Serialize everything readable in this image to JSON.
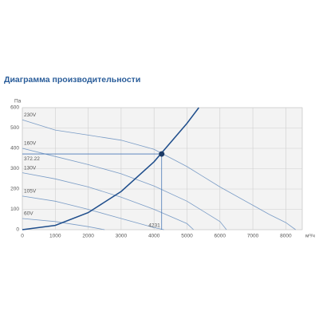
{
  "chart_data": {
    "type": "line",
    "title": "Диаграмма производительности",
    "ylabel": "Па",
    "xlabel": "м³/ч",
    "xlim": [
      0,
      8500
    ],
    "xticks": [
      0,
      1000,
      2000,
      3000,
      4000,
      5000,
      6000,
      7000,
      8000
    ],
    "ylim": [
      0,
      600
    ],
    "yticks": [
      0,
      100,
      200,
      300,
      400,
      500,
      600
    ],
    "grid": true,
    "series": [
      {
        "name": "230V",
        "color": "#7a9cc6",
        "x": [
          0,
          1000,
          2000,
          3000,
          4000,
          5000,
          6000,
          7000,
          7500,
          8000,
          8300
        ],
        "values": [
          540,
          490,
          465,
          440,
          395,
          310,
          210,
          120,
          75,
          35,
          0
        ]
      },
      {
        "name": "160V",
        "color": "#7a9cc6",
        "x": [
          0,
          1000,
          2000,
          3000,
          4000,
          5000,
          6000,
          6200
        ],
        "values": [
          400,
          360,
          320,
          275,
          215,
          140,
          40,
          0
        ]
      },
      {
        "name": "130V",
        "color": "#7a9cc6",
        "x": [
          0,
          1000,
          2000,
          3000,
          4000,
          5000,
          5200
        ],
        "values": [
          280,
          250,
          210,
          160,
          100,
          30,
          0
        ]
      },
      {
        "name": "105V",
        "color": "#7a9cc6",
        "x": [
          0,
          1000,
          2000,
          3000,
          4000,
          4300
        ],
        "values": [
          165,
          140,
          100,
          55,
          10,
          0
        ]
      },
      {
        "name": "60V",
        "color": "#7a9cc6",
        "x": [
          0,
          1000,
          2000,
          2500
        ],
        "values": [
          55,
          40,
          15,
          0
        ]
      }
    ],
    "system_curve": {
      "color": "#1f4e8c",
      "x": [
        0,
        1000,
        2000,
        3000,
        4000,
        5000,
        5360
      ],
      "values": [
        0,
        21,
        84,
        188,
        334,
        523,
        600
      ]
    },
    "operating_point": {
      "x": 4231,
      "y": 372.22,
      "color": "#1b3a66"
    }
  }
}
